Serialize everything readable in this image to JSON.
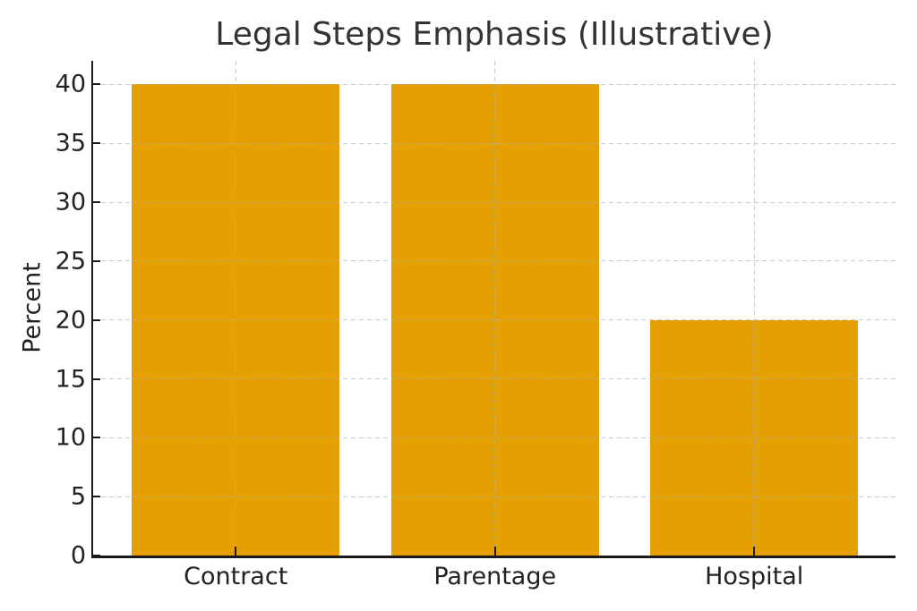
{
  "chart_data": {
    "type": "bar",
    "title": "Legal Steps Emphasis (Illustrative)",
    "categories": [
      "Contract",
      "Parentage",
      "Hospital"
    ],
    "values": [
      40,
      40,
      20
    ],
    "xlabel": "",
    "ylabel": "Percent",
    "yticks": [
      0,
      5,
      10,
      15,
      20,
      25,
      30,
      35,
      40
    ],
    "ylim": [
      0,
      42
    ],
    "xlim": [
      -0.55,
      2.545
    ],
    "bar_width": 0.8,
    "bar_color": "#E69F00",
    "grid": {
      "visible": true,
      "axis": "both",
      "style": "dashed",
      "color": "#cccccc"
    },
    "legend": "none",
    "background": "#ffffff",
    "spine_color": "#1a1a1a",
    "text_color": "#222222",
    "title_color": "#333333"
  }
}
